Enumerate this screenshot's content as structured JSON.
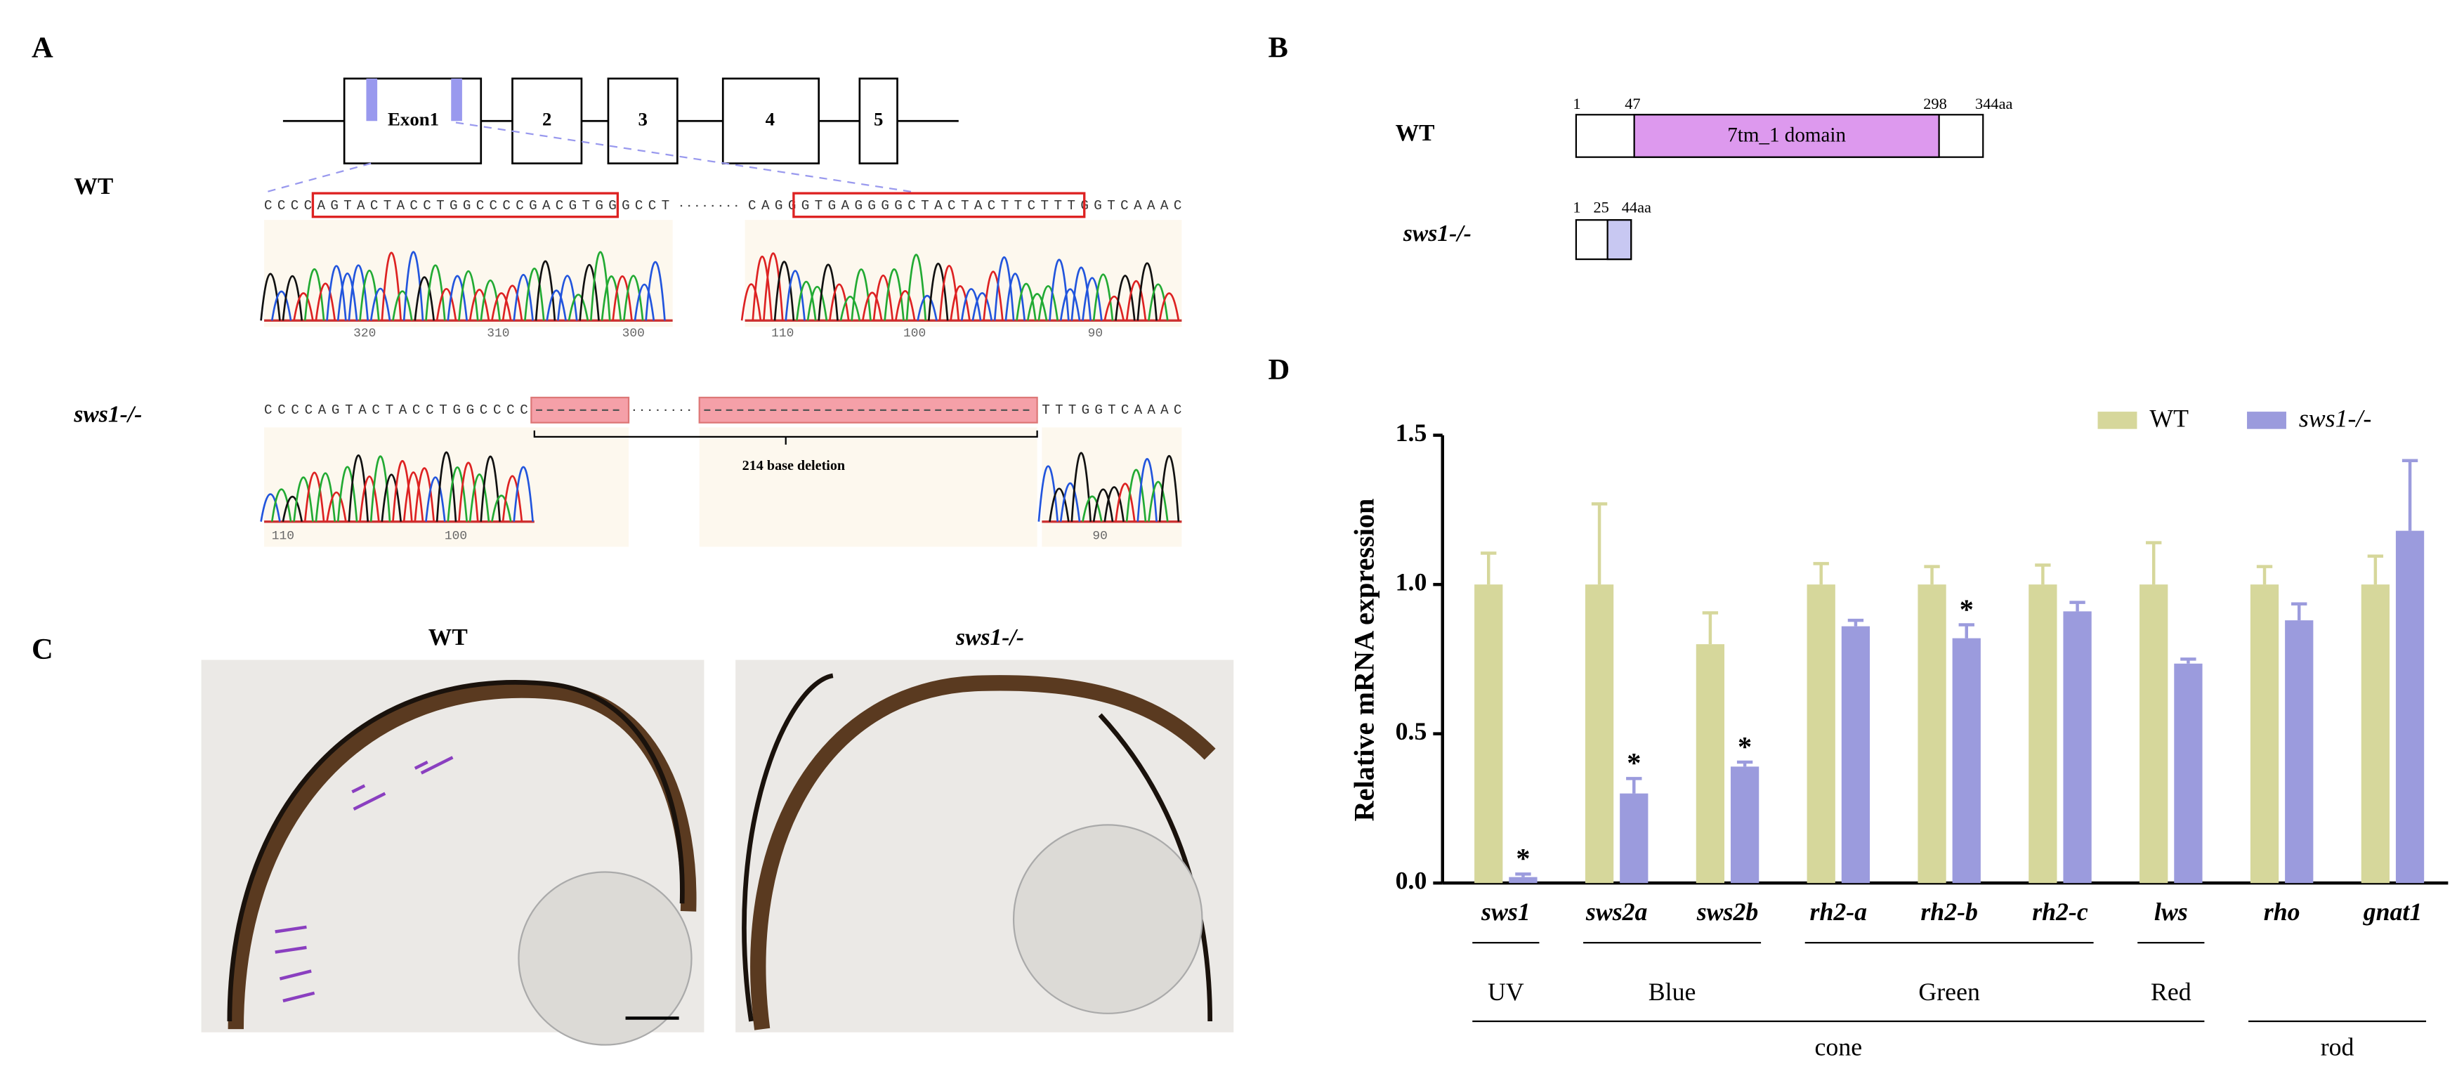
{
  "panel_labels": [
    "A",
    "B",
    "C",
    "D"
  ],
  "panel_a": {
    "exons": [
      "Exon1",
      "2",
      "3",
      "4",
      "5"
    ],
    "wt": {
      "label": "WT",
      "seq_left": "CCCCAGTACTACCTGGCCCCGACGTGGGCCT",
      "seq_right": "CAGGGTGAGGGGCTACTACTTCTTTGGTCAAAC",
      "ticks_left": [
        "320",
        "310",
        "300"
      ],
      "ticks_right": [
        "110",
        "100",
        "90"
      ]
    },
    "mutant": {
      "label": "sws1-/-",
      "seq_left": "CCCCAGTACTACCTGGCCCC",
      "seq_right": "TTTGGTCAAAC",
      "ticks_left": [
        "110",
        "100"
      ],
      "ticks_right": [
        "90"
      ],
      "deletion": "214 base deletion"
    }
  },
  "panel_b": {
    "wt": {
      "label": "WT",
      "positions": [
        "1",
        "47",
        "298",
        "344aa"
      ],
      "domain": "7tm_1 domain"
    },
    "mutant": {
      "label": "sws1-/-",
      "positions": [
        "1",
        "25",
        "44aa"
      ]
    }
  },
  "panel_c": {
    "titles": [
      "WT",
      "sws1-/-"
    ]
  },
  "chart_data": {
    "type": "bar",
    "y_label": "Relative mRNA expression",
    "categories": [
      "sws1",
      "sws2a",
      "sws2b",
      "rh2-a",
      "rh2-b",
      "rh2-c",
      "lws",
      "rho",
      "gnat1"
    ],
    "series": [
      {
        "name": "WT",
        "color": "#d6d79b",
        "values": [
          1.0,
          1.0,
          0.8,
          1.0,
          1.0,
          1.0,
          1.0,
          1.0,
          1.0
        ],
        "errors": [
          0.105,
          0.27,
          0.105,
          0.07,
          0.06,
          0.065,
          0.14,
          0.06,
          0.095
        ]
      },
      {
        "name": "sws1-/-",
        "color": "#9b9bdd",
        "values": [
          0.02,
          0.3,
          0.39,
          0.86,
          0.82,
          0.91,
          0.735,
          0.88,
          1.18
        ],
        "errors": [
          0.01,
          0.05,
          0.015,
          0.02,
          0.045,
          0.03,
          0.015,
          0.055,
          0.235
        ],
        "significance": [
          "*",
          "*",
          "*",
          null,
          "*",
          null,
          null,
          null,
          null
        ]
      }
    ],
    "ylim": [
      0,
      1.5
    ],
    "yticks": [
      {
        "value": 0,
        "label": "0.0"
      },
      {
        "value": 0.5,
        "label": "0.5"
      },
      {
        "value": 1,
        "label": "1.0"
      },
      {
        "value": 1.5,
        "label": "1.5"
      }
    ],
    "groups": [
      {
        "label": "UV",
        "span": [
          0,
          0
        ]
      },
      {
        "label": "Blue",
        "span": [
          1,
          2
        ]
      },
      {
        "label": "Green",
        "span": [
          3,
          5
        ]
      },
      {
        "label": "Red",
        "span": [
          6,
          6
        ]
      }
    ],
    "supergroups": [
      {
        "label": "cone",
        "span": [
          0,
          6
        ]
      },
      {
        "label": "rod",
        "span": [
          7,
          8
        ]
      }
    ],
    "legend": "top-right"
  }
}
